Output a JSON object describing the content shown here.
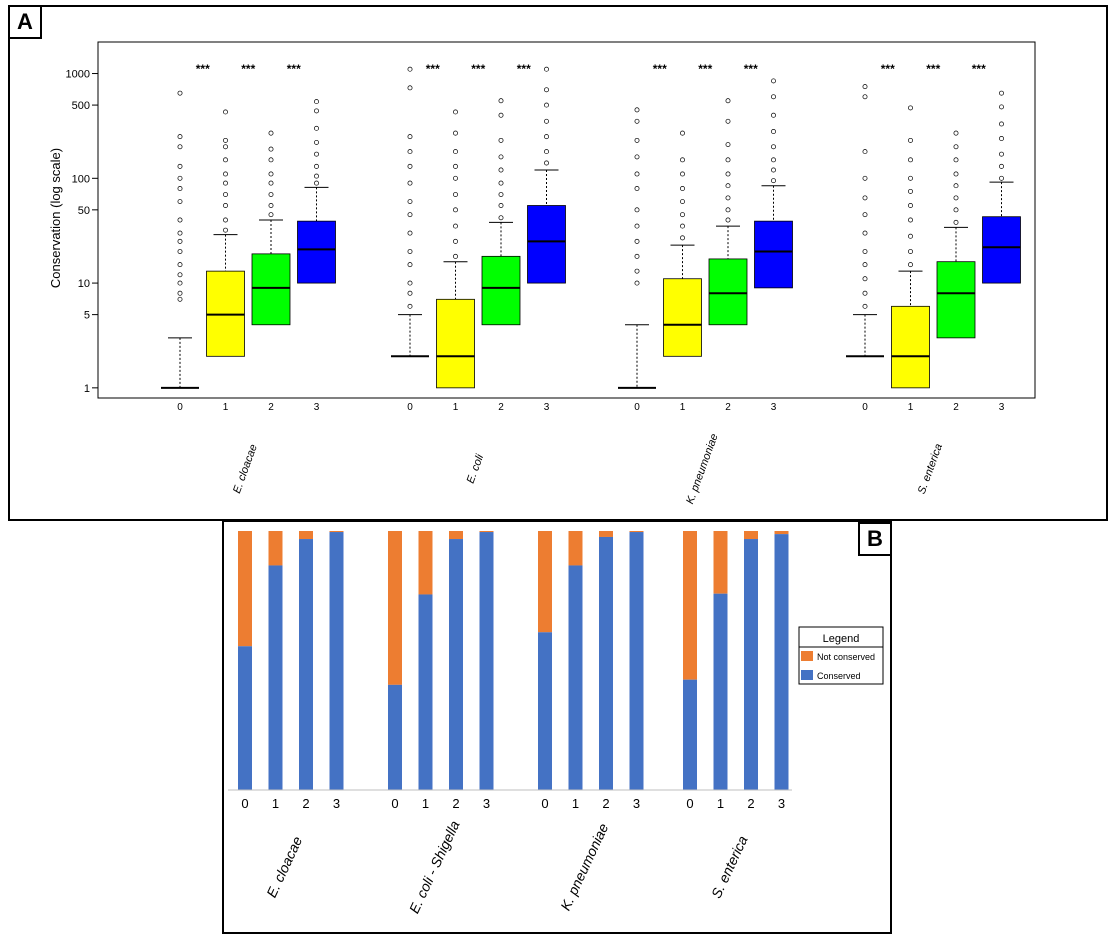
{
  "panel_labels": {
    "a": "A",
    "b": "B"
  },
  "colors": {
    "level0": "#ffffff",
    "level1": "#ffff00",
    "level2": "#00ff00",
    "level3": "#0000ff",
    "not_conserved": "#ed7d31",
    "conserved": "#4472c4"
  },
  "chart_data": [
    {
      "type": "box",
      "panel": "A",
      "ylabel": "Conservation (log scale)",
      "yscale": "log",
      "ylim": [
        0.8,
        2000
      ],
      "yticks": [
        1,
        5,
        10,
        50,
        100,
        500,
        1000
      ],
      "ytick_labels": [
        "1",
        "5",
        "10",
        "50",
        "100",
        "500",
        "1000"
      ],
      "categories": [
        "0",
        "1",
        "2",
        "3"
      ],
      "significance": "***",
      "groups": [
        {
          "name": "E. cloacae",
          "boxes": [
            {
              "cat": "0",
              "q1": 1,
              "median": 1,
              "q3": 1,
              "whisker_low": 1,
              "whisker_high": 3,
              "outliers": [
                7,
                8,
                10,
                12,
                15,
                20,
                25,
                30,
                40,
                60,
                80,
                100,
                130,
                200,
                250,
                650
              ]
            },
            {
              "cat": "1",
              "q1": 2,
              "median": 5,
              "q3": 13,
              "whisker_low": 2,
              "whisker_high": 29,
              "outliers": [
                32,
                40,
                55,
                70,
                90,
                110,
                150,
                200,
                230,
                430
              ]
            },
            {
              "cat": "2",
              "q1": 4,
              "median": 9,
              "q3": 19,
              "whisker_low": 4,
              "whisker_high": 40,
              "outliers": [
                45,
                55,
                70,
                90,
                110,
                150,
                190,
                270
              ]
            },
            {
              "cat": "3",
              "q1": 10,
              "median": 21,
              "q3": 39,
              "whisker_low": 10,
              "whisker_high": 82,
              "outliers": [
                90,
                105,
                130,
                170,
                220,
                300,
                440,
                540
              ]
            }
          ]
        },
        {
          "name": "E. coli",
          "boxes": [
            {
              "cat": "0",
              "q1": 2,
              "median": 2,
              "q3": 2,
              "whisker_low": 2,
              "whisker_high": 5,
              "outliers": [
                6,
                8,
                10,
                15,
                20,
                30,
                45,
                60,
                90,
                130,
                180,
                250,
                730,
                1100
              ]
            },
            {
              "cat": "1",
              "q1": 1,
              "median": 2,
              "q3": 7,
              "whisker_low": 1,
              "whisker_high": 16,
              "outliers": [
                18,
                25,
                35,
                50,
                70,
                100,
                130,
                180,
                270,
                430
              ]
            },
            {
              "cat": "2",
              "q1": 4,
              "median": 9,
              "q3": 18,
              "whisker_low": 4,
              "whisker_high": 38,
              "outliers": [
                42,
                55,
                70,
                90,
                120,
                160,
                230,
                400,
                550
              ]
            },
            {
              "cat": "3",
              "q1": 10,
              "median": 25,
              "q3": 55,
              "whisker_low": 10,
              "whisker_high": 120,
              "outliers": [
                140,
                180,
                250,
                350,
                500,
                700,
                1100
              ]
            }
          ]
        },
        {
          "name": "K. pneumoniae",
          "boxes": [
            {
              "cat": "0",
              "q1": 1,
              "median": 1,
              "q3": 1,
              "whisker_low": 1,
              "whisker_high": 4,
              "outliers": [
                10,
                13,
                18,
                25,
                35,
                50,
                80,
                110,
                160,
                230,
                350,
                450
              ]
            },
            {
              "cat": "1",
              "q1": 2,
              "median": 4,
              "q3": 11,
              "whisker_low": 2,
              "whisker_high": 23,
              "outliers": [
                27,
                35,
                45,
                60,
                80,
                110,
                150,
                270
              ]
            },
            {
              "cat": "2",
              "q1": 4,
              "median": 8,
              "q3": 17,
              "whisker_low": 4,
              "whisker_high": 35,
              "outliers": [
                40,
                50,
                65,
                85,
                110,
                150,
                210,
                350,
                550
              ]
            },
            {
              "cat": "3",
              "q1": 9,
              "median": 20,
              "q3": 39,
              "whisker_low": 9,
              "whisker_high": 85,
              "outliers": [
                95,
                120,
                150,
                200,
                280,
                400,
                600,
                850
              ]
            }
          ]
        },
        {
          "name": "S. enterica",
          "boxes": [
            {
              "cat": "0",
              "q1": 2,
              "median": 2,
              "q3": 2,
              "whisker_low": 2,
              "whisker_high": 5,
              "outliers": [
                6,
                8,
                11,
                15,
                20,
                30,
                45,
                65,
                100,
                180,
                600,
                750
              ]
            },
            {
              "cat": "1",
              "q1": 1,
              "median": 2,
              "q3": 6,
              "whisker_low": 1,
              "whisker_high": 13,
              "outliers": [
                15,
                20,
                28,
                40,
                55,
                75,
                100,
                150,
                230,
                470
              ]
            },
            {
              "cat": "2",
              "q1": 3,
              "median": 8,
              "q3": 16,
              "whisker_low": 3,
              "whisker_high": 34,
              "outliers": [
                38,
                50,
                65,
                85,
                110,
                150,
                200,
                270
              ]
            },
            {
              "cat": "3",
              "q1": 10,
              "median": 22,
              "q3": 43,
              "whisker_low": 10,
              "whisker_high": 92,
              "outliers": [
                100,
                130,
                170,
                240,
                330,
                480,
                650
              ]
            }
          ]
        }
      ]
    },
    {
      "type": "bar",
      "stacked": true,
      "panel": "B",
      "ylim": [
        0,
        1
      ],
      "categories": [
        "0",
        "1",
        "2",
        "3"
      ],
      "legend": {
        "title": "Legend",
        "position": "right",
        "entries": [
          "Not conserved",
          "Conserved"
        ]
      },
      "groups": [
        {
          "name": "E. cloacae",
          "conserved": [
            0.555,
            0.867,
            0.969,
            0.996
          ]
        },
        {
          "name": "E. coli - Shigella",
          "conserved": [
            0.406,
            0.755,
            0.969,
            0.996
          ]
        },
        {
          "name": "K. pneumoniae",
          "conserved": [
            0.609,
            0.867,
            0.977,
            0.996
          ]
        },
        {
          "name": "S. enterica",
          "conserved": [
            0.426,
            0.758,
            0.969,
            0.988
          ]
        }
      ]
    }
  ]
}
